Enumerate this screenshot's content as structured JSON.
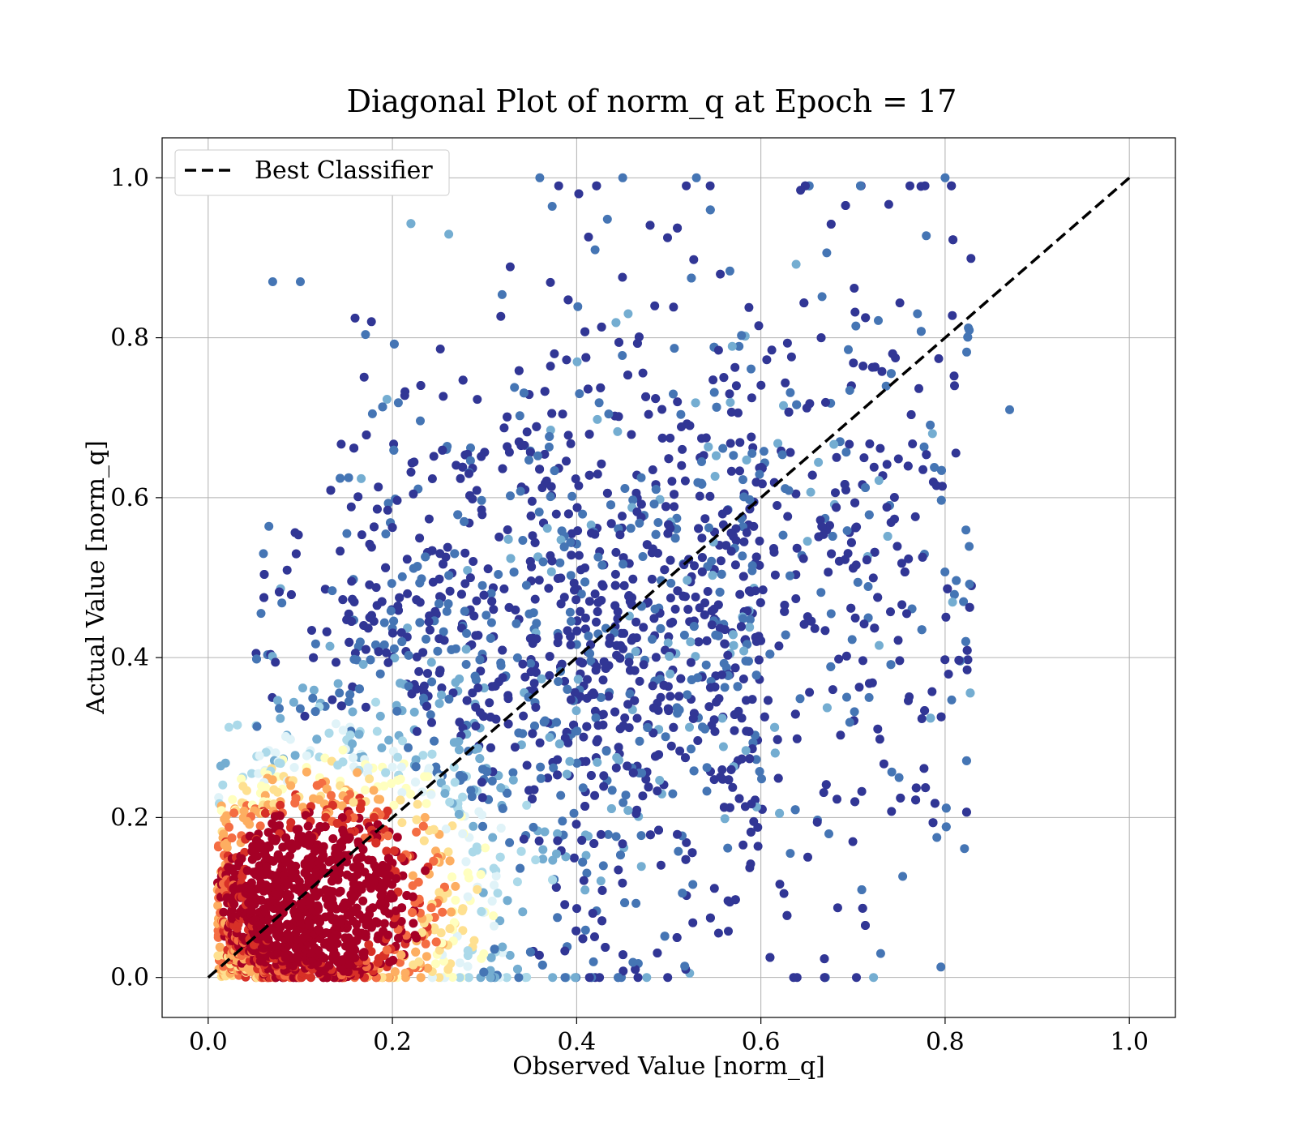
{
  "chart_data": {
    "type": "scatter",
    "title": "Diagonal Plot of norm_q at Epoch = 17",
    "xlabel": "Observed Value [norm_q]",
    "ylabel": "Actual Value [norm_q]",
    "xlim": [
      -0.05,
      1.05
    ],
    "ylim": [
      -0.05,
      1.05
    ],
    "xticks": [
      0.0,
      0.2,
      0.4,
      0.6,
      0.8,
      1.0
    ],
    "yticks": [
      0.0,
      0.2,
      0.4,
      0.6,
      0.8,
      1.0
    ],
    "xtick_labels": [
      "0.0",
      "0.2",
      "0.4",
      "0.6",
      "0.8",
      "1.0"
    ],
    "ytick_labels": [
      "0.0",
      "0.2",
      "0.4",
      "0.6",
      "0.8",
      "1.0"
    ],
    "grid": true,
    "legend": {
      "position": "top-left",
      "entries": [
        "Best Classifier"
      ]
    },
    "diagonal": {
      "name": "Best Classifier",
      "x": [
        0.0,
        1.0
      ],
      "y": [
        0.0,
        1.0
      ],
      "style": "dashed",
      "color": "#000000"
    },
    "colormap": [
      "#a50026",
      "#d73027",
      "#f46d43",
      "#fdae61",
      "#fee090",
      "#ffffbf",
      "#e0f3f8",
      "#abd9e9",
      "#74add1",
      "#4575b4",
      "#313695"
    ],
    "density_note_colors": {
      "high_density": "#a50026",
      "low_density": "#313695"
    },
    "point_cloud": {
      "count_estimate": 12000,
      "region_x": [
        0.0,
        0.88
      ],
      "region_y": [
        0.0,
        1.0
      ],
      "dense_core": {
        "x": [
          0.02,
          0.3
        ],
        "y": [
          0.0,
          0.3
        ]
      }
    },
    "sample_points": [
      {
        "x": 0.53,
        "y": 1.0
      },
      {
        "x": 0.45,
        "y": 1.0
      },
      {
        "x": 0.36,
        "y": 1.0
      },
      {
        "x": 0.8,
        "y": 1.0
      },
      {
        "x": 0.87,
        "y": 0.71
      },
      {
        "x": 0.75,
        "y": 0.25
      },
      {
        "x": 0.73,
        "y": 0.03
      },
      {
        "x": 0.67,
        "y": 0.0
      },
      {
        "x": 0.07,
        "y": 0.87
      },
      {
        "x": 0.1,
        "y": 0.87
      },
      {
        "x": 0.82,
        "y": 0.47
      },
      {
        "x": 0.77,
        "y": 0.83
      },
      {
        "x": 0.06,
        "y": 0.53
      },
      {
        "x": 0.42,
        "y": 0.91
      }
    ]
  }
}
